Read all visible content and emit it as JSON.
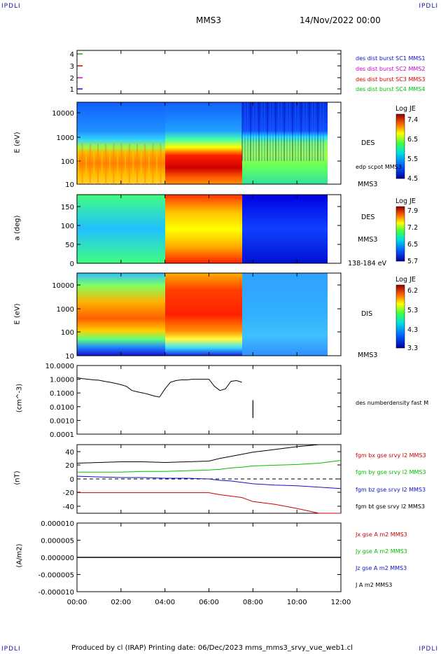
{
  "corners": {
    "tl": "IPDLI",
    "tr": "IPDLI",
    "bl": "IPDLI",
    "br": "IPDLI"
  },
  "header": {
    "mission": "MMS3",
    "datetime": "14/Nov/2022 00:00"
  },
  "footer": {
    "text": "Produced by cl (IRAP)   Printing date: 06/Dec/2023   mms_mms3_srvy_vue_web1.cl"
  },
  "colors": {
    "blue": "#1010c8",
    "magenta": "#d000d0",
    "red": "#d00000",
    "green": "#00c000",
    "black": "#000000"
  },
  "colorbars": [
    {
      "title": "Log JE",
      "ticks": [
        "7.4",
        "6.5",
        "5.5",
        "4.5"
      ]
    },
    {
      "title": "Log JE",
      "ticks": [
        "7.9",
        "7.2",
        "6.5",
        "5.7"
      ]
    },
    {
      "title": "Log JE",
      "ticks": [
        "6.2",
        "5.3",
        "4.3",
        "3.3"
      ]
    }
  ],
  "chart_data": [
    {
      "type": "scatter",
      "panel": "burst-availability",
      "yticks": [
        "4",
        "3",
        "2",
        "1"
      ],
      "legend": [
        "des dist burst SC1 MMS1",
        "des dist burst SC2 MMS2",
        "des dist burst SC3 MMS3",
        "des dist burst SC4 MMS4"
      ],
      "legend_colors": [
        "#1010c8",
        "#d000d0",
        "#d00000",
        "#00c000"
      ],
      "marks": [
        {
          "y": 4,
          "color": "#00c000",
          "x": "00:00"
        },
        {
          "y": 3,
          "color": "#d00000",
          "x": "00:00"
        },
        {
          "y": 2,
          "color": "#d000d0",
          "x": "00:00"
        },
        {
          "y": 1,
          "color": "#1010c8",
          "x": "00:00"
        }
      ]
    },
    {
      "type": "heatmap",
      "panel": "des-energy-spectrogram",
      "ylabel": "E (eV)",
      "yticks": [
        "10000",
        "1000",
        "100",
        "10"
      ],
      "labels": [
        "DES",
        "edp scpot MMS3",
        "MMS3"
      ],
      "colorbar": "Log JE",
      "clim": [
        4.5,
        7.4
      ]
    },
    {
      "type": "heatmap",
      "panel": "des-pitch-angle",
      "ylabel": "a (deg)",
      "yticks": [
        "150",
        "100",
        "50",
        "0"
      ],
      "labels": [
        "DES",
        "MMS3",
        "138-184 eV"
      ],
      "colorbar": "Log JE",
      "clim": [
        5.7,
        7.9
      ]
    },
    {
      "type": "heatmap",
      "panel": "dis-energy-spectrogram",
      "ylabel": "E (eV)",
      "yticks": [
        "10000",
        "1000",
        "100",
        "10"
      ],
      "labels": [
        "DIS",
        "MMS3"
      ],
      "colorbar": "Log JE",
      "clim": [
        3.3,
        6.2
      ]
    },
    {
      "type": "line",
      "panel": "number-density",
      "ylabel": "(cm^-3)",
      "yticks": [
        "10.0000",
        "1.0000",
        "0.1000",
        "0.0100",
        "0.0010",
        "0.0001"
      ],
      "scale": "log",
      "ylim": [
        0.0001,
        10
      ],
      "series": [
        {
          "name": "des numberdensity fast M",
          "color": "#000000",
          "x": [
            0.0,
            0.25,
            0.5,
            0.75,
            1.0,
            1.25,
            1.5,
            1.75,
            2.0,
            2.25,
            2.5,
            2.75,
            3.0,
            3.25,
            3.5,
            3.75,
            4.0,
            4.25,
            4.5,
            4.75,
            5.0,
            5.25,
            5.5,
            5.75,
            6.0,
            6.25,
            6.5,
            6.75,
            7.0,
            7.25,
            7.5
          ],
          "y": [
            1.3,
            1.1,
            1.0,
            0.9,
            0.85,
            0.7,
            0.6,
            0.5,
            0.4,
            0.3,
            0.15,
            0.12,
            0.1,
            0.08,
            0.06,
            0.05,
            0.2,
            0.6,
            0.8,
            0.9,
            0.9,
            1.0,
            1.0,
            1.0,
            1.0,
            0.3,
            0.15,
            0.2,
            0.7,
            0.8,
            0.6
          ]
        }
      ]
    },
    {
      "type": "line",
      "panel": "magnetic-field",
      "ylabel": "(nT)",
      "yticks": [
        "40",
        "20",
        "0",
        "-20",
        "-40"
      ],
      "ylim": [
        -50,
        50
      ],
      "series": [
        {
          "name": "fgm bx gse srvy l2 MMS3",
          "color": "#d00000",
          "x": [
            0,
            1,
            2,
            3,
            4,
            5,
            6,
            6.5,
            7,
            7.5,
            8,
            9,
            10,
            11,
            12
          ],
          "y": [
            -20,
            -20,
            -20,
            -20,
            -20,
            -20,
            -20,
            -23,
            -25,
            -27,
            -33,
            -37,
            -43,
            -50,
            -50
          ]
        },
        {
          "name": "fgm by gse srvy l2 MMS3",
          "color": "#00c000",
          "x": [
            0,
            1,
            2,
            3,
            4,
            5,
            6,
            6.5,
            7,
            7.5,
            8,
            9,
            10,
            11,
            12
          ],
          "y": [
            10,
            10,
            10,
            11,
            11,
            12,
            13,
            14,
            16,
            17,
            19,
            20,
            21,
            23,
            27
          ]
        },
        {
          "name": "fgm bz gse srvy l2 MMS3",
          "color": "#1010c8",
          "x": [
            0,
            1,
            2,
            3,
            4,
            5,
            6,
            6.5,
            7,
            7.5,
            8,
            9,
            10,
            11,
            12
          ],
          "y": [
            4,
            3,
            2,
            2,
            1,
            1,
            0,
            -2,
            -3,
            -5,
            -7,
            -9,
            -10,
            -12,
            -14
          ]
        },
        {
          "name": "fgm bt gse srvy l2 MMS3",
          "color": "#000000",
          "x": [
            0,
            1,
            2,
            3,
            4,
            5,
            6,
            6.5,
            7,
            7.5,
            8,
            9,
            10,
            11,
            12
          ],
          "y": [
            23,
            24,
            25,
            25,
            24,
            25,
            26,
            30,
            33,
            36,
            39,
            43,
            47,
            50,
            50
          ]
        }
      ]
    },
    {
      "type": "line",
      "panel": "current-density",
      "ylabel": "(A/m2)",
      "yticks": [
        "0.000010",
        "0.000005",
        "0.000000",
        "-0.000005",
        "-0.000010"
      ],
      "ylim": [
        -1e-05,
        1e-05
      ],
      "xticks": [
        "00:00",
        "02:00",
        "04:00",
        "06:00",
        "08:00",
        "10:00",
        "12:00"
      ],
      "series": [
        {
          "name": "Jx gse A m2 MMS3",
          "color": "#d00000"
        },
        {
          "name": "Jy gse A m2 MMS3",
          "color": "#00c000"
        },
        {
          "name": "Jz gse A m2 MMS3",
          "color": "#1010c8"
        },
        {
          "name": "J A m2 MMS3",
          "color": "#000000",
          "x": [
            0,
            2,
            4,
            6,
            8,
            10,
            12
          ],
          "y": [
            0,
            0,
            0,
            0,
            0,
            0,
            0
          ]
        }
      ]
    }
  ]
}
